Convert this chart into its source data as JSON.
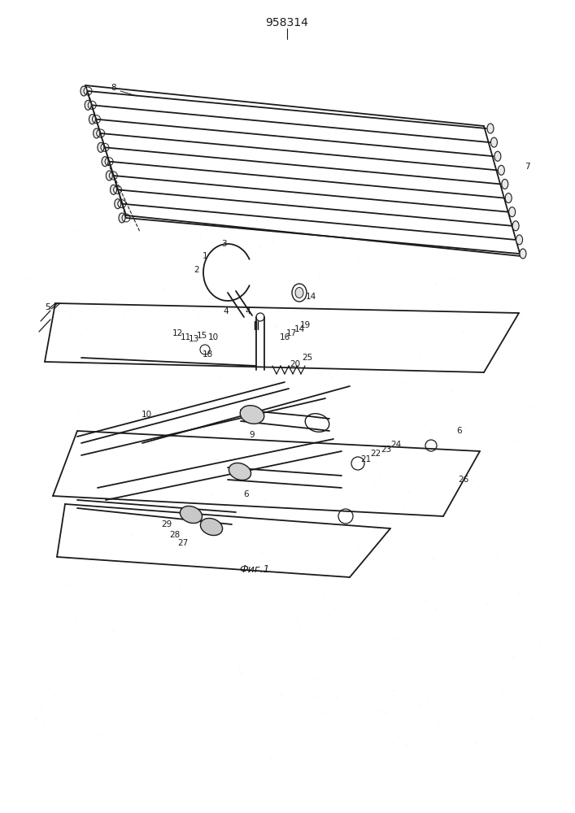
{
  "title": "958314",
  "caption": "Фиг.1",
  "bg_color": "#ffffff",
  "line_color": "#1a1a1a",
  "title_fontsize": 10,
  "caption_fontsize": 9,
  "label_fontsize": 7.5,
  "fig_width": 7.07,
  "fig_height": 10.0,
  "dpi": 100
}
